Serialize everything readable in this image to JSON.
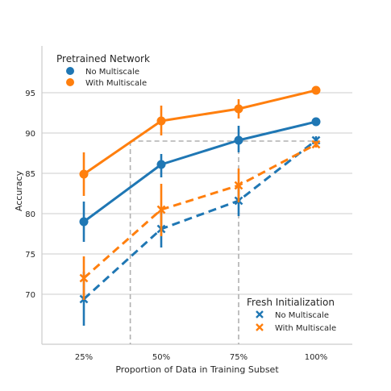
{
  "chart_data": {
    "type": "line",
    "xlabel": "Proportion of Data in Training Subset",
    "ylabel": "Accuracy",
    "categories": [
      "25%",
      "50%",
      "75%",
      "100%"
    ],
    "yticks": [
      70,
      75,
      80,
      85,
      90,
      95
    ],
    "ylim": [
      63,
      100
    ],
    "grid": "horizontal",
    "colors": {
      "no_multiscale": "#1f77b4",
      "with_multiscale": "#ff7f0e",
      "reference": "#b0b0b0",
      "grid": "#cccccc"
    },
    "series": [
      {
        "name": "No Multiscale",
        "group": "pretrained",
        "marker": "circle",
        "linestyle": "solid",
        "color": "#1f77b4",
        "values": [
          79.0,
          86.1,
          89.1,
          91.4
        ],
        "err_low": [
          76.5,
          84.5,
          87.6,
          91.1
        ],
        "err_high": [
          81.5,
          87.4,
          90.9,
          91.7
        ]
      },
      {
        "name": "With Multiscale",
        "group": "pretrained",
        "marker": "circle",
        "linestyle": "solid",
        "color": "#ff7f0e",
        "values": [
          84.9,
          91.5,
          93.0,
          95.3
        ],
        "err_low": [
          82.2,
          89.7,
          91.8,
          95.1
        ],
        "err_high": [
          87.6,
          93.4,
          94.2,
          95.5
        ]
      },
      {
        "name": "No Multiscale",
        "group": "fresh",
        "marker": "x",
        "linestyle": "dashed",
        "color": "#1f77b4",
        "values": [
          69.4,
          78.1,
          81.6,
          89.1
        ],
        "err_low": [
          66.1,
          75.8,
          79.7,
          88.5
        ],
        "err_high": [
          72.8,
          80.3,
          83.6,
          89.6
        ]
      },
      {
        "name": "With Multiscale",
        "group": "fresh",
        "marker": "x",
        "linestyle": "dashed",
        "color": "#ff7f0e",
        "values": [
          72.0,
          80.5,
          83.5,
          88.6
        ],
        "err_low": [
          69.3,
          77.2,
          81.4,
          88.2
        ],
        "err_high": [
          74.7,
          83.7,
          85.6,
          89.0
        ]
      }
    ],
    "reference_lines": {
      "level": 89,
      "x_start": 0.4,
      "x_end": 0.75
    },
    "legends": [
      {
        "title": "Pretrained Network",
        "placement": "top-left",
        "marker": "circle",
        "entries": [
          {
            "label": "No Multiscale",
            "color": "#1f77b4"
          },
          {
            "label": "With Multiscale",
            "color": "#ff7f0e"
          }
        ]
      },
      {
        "title": "Fresh Initialization",
        "placement": "bottom-right",
        "marker": "x",
        "entries": [
          {
            "label": "No Multiscale",
            "color": "#1f77b4"
          },
          {
            "label": "With Multiscale",
            "color": "#ff7f0e"
          }
        ]
      }
    ]
  }
}
